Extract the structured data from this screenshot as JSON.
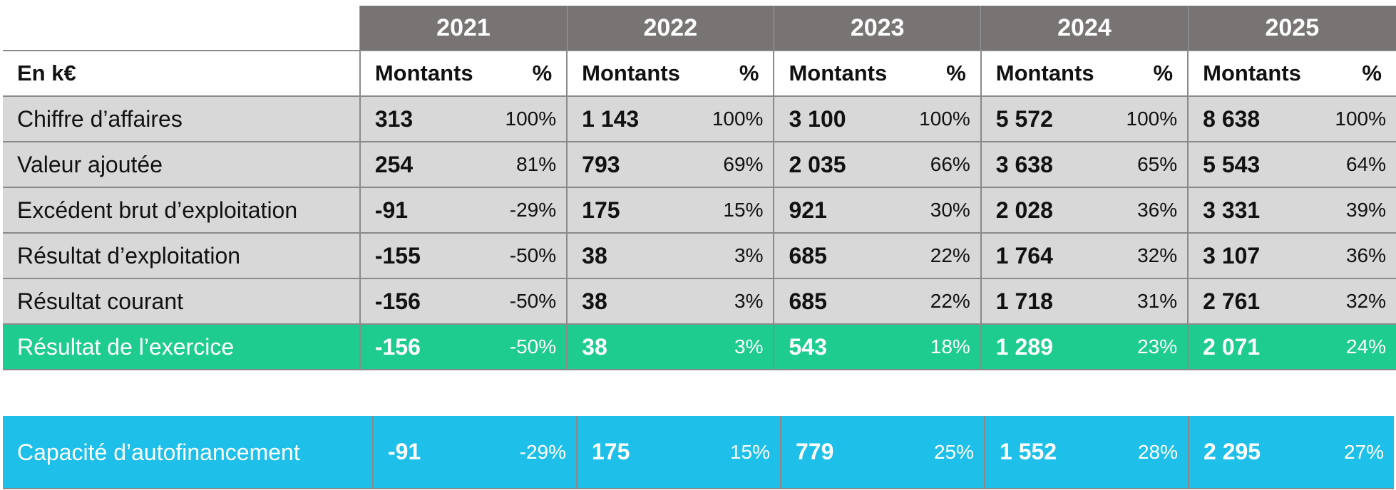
{
  "years": [
    "2021",
    "2022",
    "2023",
    "2024",
    "2025"
  ],
  "header": {
    "unit_label": "En k€",
    "amount_label": "Montants",
    "percent_label": "%"
  },
  "rows": [
    {
      "label": "Chiffre d’affaires",
      "cells": [
        {
          "m": "313",
          "p": "100%"
        },
        {
          "m": "1 143",
          "p": "100%"
        },
        {
          "m": "3 100",
          "p": "100%"
        },
        {
          "m": "5 572",
          "p": "100%"
        },
        {
          "m": "8 638",
          "p": "100%"
        }
      ]
    },
    {
      "label": "Valeur ajoutée",
      "cells": [
        {
          "m": "254",
          "p": "81%"
        },
        {
          "m": "793",
          "p": "69%"
        },
        {
          "m": "2 035",
          "p": "66%"
        },
        {
          "m": "3 638",
          "p": "65%"
        },
        {
          "m": "5 543",
          "p": "64%"
        }
      ]
    },
    {
      "label": "Excédent brut d’exploitation",
      "cells": [
        {
          "m": "-91",
          "p": "-29%"
        },
        {
          "m": "175",
          "p": "15%"
        },
        {
          "m": "921",
          "p": "30%"
        },
        {
          "m": "2 028",
          "p": "36%"
        },
        {
          "m": "3 331",
          "p": "39%"
        }
      ]
    },
    {
      "label": "Résultat d’exploitation",
      "cells": [
        {
          "m": "-155",
          "p": "-50%"
        },
        {
          "m": "38",
          "p": "3%"
        },
        {
          "m": "685",
          "p": "22%"
        },
        {
          "m": "1 764",
          "p": "32%"
        },
        {
          "m": "3 107",
          "p": "36%"
        }
      ]
    },
    {
      "label": "Résultat courant",
      "cells": [
        {
          "m": "-156",
          "p": "-50%"
        },
        {
          "m": "38",
          "p": "3%"
        },
        {
          "m": "685",
          "p": "22%"
        },
        {
          "m": "1 718",
          "p": "31%"
        },
        {
          "m": "2 761",
          "p": "32%"
        }
      ]
    },
    {
      "label": "Résultat de l’exercice",
      "cells": [
        {
          "m": "-156",
          "p": "-50%"
        },
        {
          "m": "38",
          "p": "3%"
        },
        {
          "m": "543",
          "p": "18%"
        },
        {
          "m": "1 289",
          "p": "23%"
        },
        {
          "m": "2 071",
          "p": "24%"
        }
      ]
    }
  ],
  "caf": {
    "label": "Capacité d’autofinancement",
    "cells": [
      {
        "m": "-91",
        "p": "-29%"
      },
      {
        "m": "175",
        "p": "15%"
      },
      {
        "m": "779",
        "p": "25%"
      },
      {
        "m": "1 552",
        "p": "28%"
      },
      {
        "m": "2 295",
        "p": "27%"
      }
    ]
  },
  "colors": {
    "header_bg": "#787474",
    "row_bg": "#d8d8d8",
    "highlight_green": "#1ecc8f",
    "highlight_blue": "#1ebfe9"
  }
}
